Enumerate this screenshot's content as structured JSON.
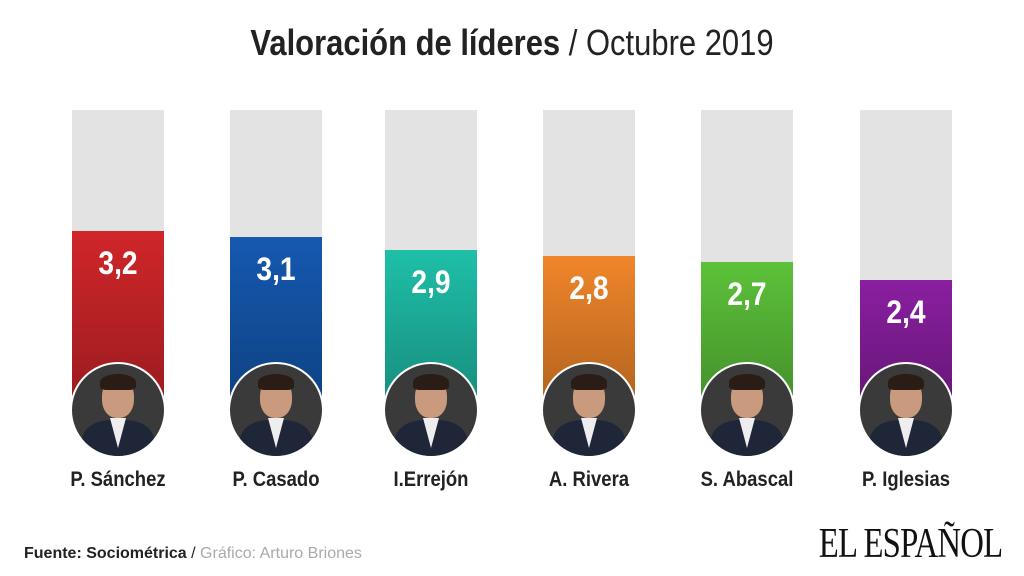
{
  "title": {
    "bold": "Valoración de líderes",
    "separator": " / ",
    "subtitle": "Octubre 2019"
  },
  "chart_data": {
    "type": "bar",
    "title": "Valoración de líderes / Octubre 2019",
    "categories": [
      "P. Sánchez",
      "P. Casado",
      "I.Errejón",
      "A. Rivera",
      "S. Abascal",
      "P. Iglesias"
    ],
    "values": [
      3.2,
      3.1,
      2.9,
      2.8,
      2.7,
      2.4
    ],
    "labels": [
      "3,2",
      "3,1",
      "2,9",
      "2,8",
      "2,7",
      "2,4"
    ],
    "colors": [
      "#d0262a",
      "#1559b0",
      "#1fbfa8",
      "#f0862a",
      "#5cc23a",
      "#8a1fa0"
    ],
    "xlabel": "",
    "ylabel": "",
    "grid": false
  },
  "footer": {
    "source": "Fuente: Sociométrica",
    "separator": " / ",
    "credit": "Gráfico: Arturo Briones"
  },
  "logo": "EL ESPAÑOL"
}
